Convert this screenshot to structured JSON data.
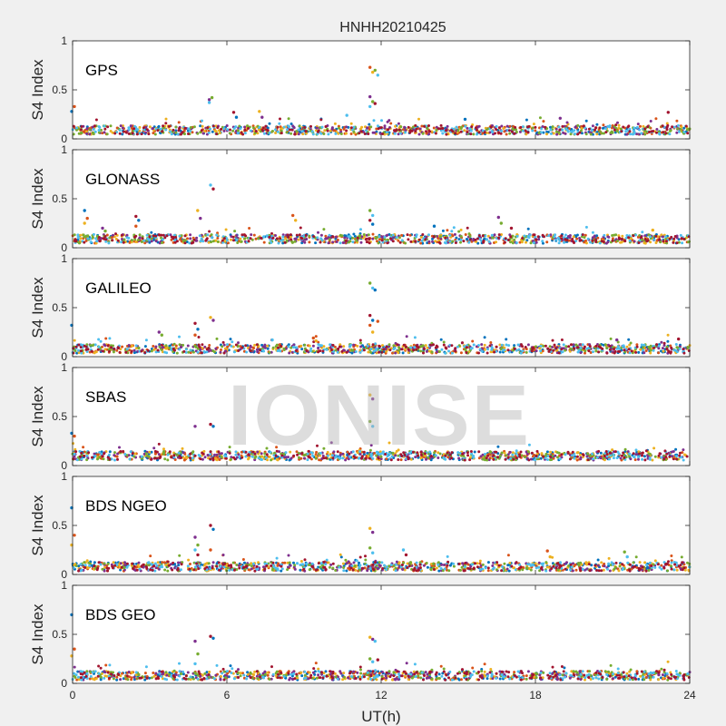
{
  "figure": {
    "title": "HNHH20210425",
    "xlabel": "UT(h)",
    "watermark": "IONISE"
  },
  "chart_data": [
    {
      "type": "scatter",
      "panel": "GPS",
      "ylabel": "S4 Index",
      "xlim": [
        0,
        24
      ],
      "ylim": [
        0,
        1
      ],
      "xticks": [
        0,
        6,
        12,
        18,
        24
      ],
      "yticks": [
        0,
        0.5,
        1
      ],
      "baseline": 0.09,
      "spikes": [
        {
          "x": 0.0,
          "values": [
            0.28,
            0.33
          ]
        },
        {
          "x": 5.35,
          "values": [
            0.4,
            0.42,
            0.37
          ]
        },
        {
          "x": 6.3,
          "values": [
            0.27,
            0.22
          ]
        },
        {
          "x": 7.3,
          "values": [
            0.28,
            0.22
          ]
        },
        {
          "x": 10.7,
          "values": [
            0.24
          ]
        },
        {
          "x": 11.6,
          "values": [
            0.73,
            0.68,
            0.43,
            0.38,
            0.33
          ]
        },
        {
          "x": 11.8,
          "values": [
            0.7,
            0.65,
            0.36
          ]
        },
        {
          "x": 15.3,
          "values": [
            0.2
          ]
        },
        {
          "x": 19.0,
          "values": [
            0.21
          ]
        },
        {
          "x": 23.2,
          "values": [
            0.27
          ]
        }
      ]
    },
    {
      "type": "scatter",
      "panel": "GLONASS",
      "ylabel": "S4 Index",
      "xlim": [
        0,
        24
      ],
      "ylim": [
        0,
        1
      ],
      "xticks": [
        0,
        6,
        12,
        18,
        24
      ],
      "yticks": [
        0,
        0.5,
        1
      ],
      "baseline": 0.09,
      "spikes": [
        {
          "x": 0.5,
          "values": [
            0.38,
            0.3,
            0.25
          ]
        },
        {
          "x": 1.2,
          "values": [
            0.2,
            0.17
          ]
        },
        {
          "x": 2.5,
          "values": [
            0.32,
            0.28,
            0.22
          ]
        },
        {
          "x": 4.9,
          "values": [
            0.38,
            0.3
          ]
        },
        {
          "x": 5.4,
          "values": [
            0.64,
            0.6
          ]
        },
        {
          "x": 8.6,
          "values": [
            0.33,
            0.28
          ]
        },
        {
          "x": 11.6,
          "values": [
            0.38,
            0.33,
            0.28,
            0.24
          ]
        },
        {
          "x": 14.1,
          "values": [
            0.22
          ]
        },
        {
          "x": 16.6,
          "values": [
            0.31,
            0.25
          ]
        },
        {
          "x": 17.1,
          "values": [
            0.2
          ]
        },
        {
          "x": 22.6,
          "values": [
            0.18
          ]
        }
      ]
    },
    {
      "type": "scatter",
      "panel": "GALILEO",
      "ylabel": "S4 Index",
      "xlim": [
        0,
        24
      ],
      "ylim": [
        0,
        1
      ],
      "xticks": [
        0,
        6,
        12,
        18,
        24
      ],
      "yticks": [
        0,
        0.5,
        1
      ],
      "baseline": 0.08,
      "spikes": [
        {
          "x": 0.0,
          "values": [
            0.32
          ]
        },
        {
          "x": 3.4,
          "values": [
            0.25,
            0.22
          ]
        },
        {
          "x": 4.8,
          "values": [
            0.34,
            0.28,
            0.22
          ]
        },
        {
          "x": 5.4,
          "values": [
            0.4,
            0.37
          ]
        },
        {
          "x": 7.8,
          "values": [
            0.17
          ]
        },
        {
          "x": 9.4,
          "values": [
            0.19,
            0.16
          ]
        },
        {
          "x": 11.6,
          "values": [
            0.75,
            0.7,
            0.42,
            0.37,
            0.32,
            0.25
          ]
        },
        {
          "x": 11.8,
          "values": [
            0.68,
            0.36
          ]
        },
        {
          "x": 21.2,
          "values": [
            0.17
          ]
        },
        {
          "x": 23.6,
          "values": [
            0.18
          ]
        }
      ]
    },
    {
      "type": "scatter",
      "panel": "SBAS",
      "ylabel": "S4 Index",
      "xlim": [
        0,
        24
      ],
      "ylim": [
        0,
        1
      ],
      "xticks": [
        0,
        6,
        12,
        18,
        24
      ],
      "yticks": [
        0,
        0.5,
        1
      ],
      "baseline": 0.1,
      "spikes": [
        {
          "x": 0.0,
          "values": [
            0.33,
            0.3
          ]
        },
        {
          "x": 4.8,
          "values": [
            0.4
          ]
        },
        {
          "x": 5.4,
          "values": [
            0.42,
            0.4
          ]
        },
        {
          "x": 11.6,
          "values": [
            0.72,
            0.68,
            0.45,
            0.4
          ]
        }
      ]
    },
    {
      "type": "scatter",
      "panel": "BDS NGEO",
      "ylabel": "S4 Index",
      "xlim": [
        0,
        24
      ],
      "ylim": [
        0,
        1
      ],
      "xticks": [
        0,
        6,
        12,
        18,
        24
      ],
      "yticks": [
        0,
        0.5,
        1
      ],
      "baseline": 0.08,
      "spikes": [
        {
          "x": 0.0,
          "values": [
            0.68,
            0.4,
            0.3
          ]
        },
        {
          "x": 4.8,
          "values": [
            0.38,
            0.3,
            0.25,
            0.2
          ]
        },
        {
          "x": 5.4,
          "values": [
            0.5,
            0.46,
            0.25
          ]
        },
        {
          "x": 11.6,
          "values": [
            0.47,
            0.43,
            0.27,
            0.22
          ]
        },
        {
          "x": 12.9,
          "values": [
            0.25,
            0.2
          ]
        },
        {
          "x": 18.5,
          "values": [
            0.24,
            0.18
          ]
        },
        {
          "x": 21.5,
          "values": [
            0.23,
            0.18
          ]
        }
      ]
    },
    {
      "type": "scatter",
      "panel": "BDS GEO",
      "ylabel": "S4 Index",
      "xlim": [
        0,
        24
      ],
      "ylim": [
        0,
        1
      ],
      "xticks": [
        0,
        6,
        12,
        18,
        24
      ],
      "yticks": [
        0,
        0.5,
        1
      ],
      "baseline": 0.08,
      "spikes": [
        {
          "x": 0.0,
          "values": [
            0.7,
            0.35,
            0.28
          ]
        },
        {
          "x": 4.8,
          "values": [
            0.43,
            0.3,
            0.2
          ]
        },
        {
          "x": 5.4,
          "values": [
            0.48,
            0.46
          ]
        },
        {
          "x": 11.6,
          "values": [
            0.47,
            0.45,
            0.25,
            0.22
          ]
        },
        {
          "x": 11.8,
          "values": [
            0.43,
            0.24
          ]
        }
      ]
    }
  ],
  "colors": {
    "series": [
      "#0072bd",
      "#d95319",
      "#edb120",
      "#7e2f8e",
      "#77ac30",
      "#4dbeee",
      "#a2142f"
    ],
    "axis": "#262626",
    "panel_bg": "#ffffff",
    "figure_bg": "#f0f0f0"
  }
}
